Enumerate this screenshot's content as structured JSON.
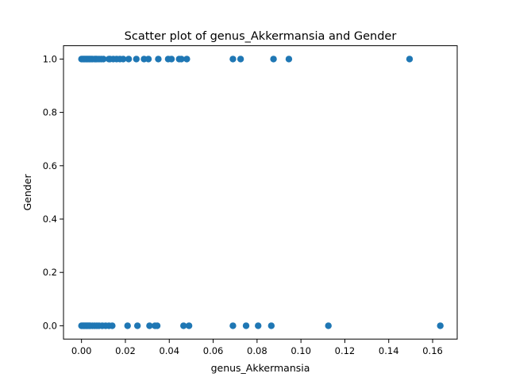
{
  "chart_data": {
    "type": "scatter",
    "title": "Scatter plot of genus_Akkermansia and Gender",
    "xlabel": "genus_Akkermansia",
    "ylabel": "Gender",
    "xlim": [
      -0.0082,
      0.1712
    ],
    "ylim": [
      -0.05,
      1.05
    ],
    "grid": false,
    "legend": "none",
    "x_ticks": [
      0.0,
      0.02,
      0.04,
      0.06,
      0.08,
      0.1,
      0.12,
      0.14,
      0.16
    ],
    "x_tick_labels": [
      "0.00",
      "0.02",
      "0.04",
      "0.06",
      "0.08",
      "0.10",
      "0.12",
      "0.14",
      "0.16"
    ],
    "y_ticks": [
      0.0,
      0.2,
      0.4,
      0.6,
      0.8,
      1.0
    ],
    "y_tick_labels": [
      "0.0",
      "0.2",
      "0.4",
      "0.6",
      "0.8",
      "1.0"
    ],
    "marker_color": "#1f77b4",
    "series": [
      {
        "x": [
          0.0,
          0.0005,
          0.001,
          0.0015,
          0.002,
          0.0025,
          0.003,
          0.0035,
          0.004,
          0.0045,
          0.005,
          0.006,
          0.0065,
          0.007,
          0.008,
          0.009,
          0.01,
          0.0125,
          0.013,
          0.0145,
          0.016,
          0.0175,
          0.019,
          0.0215,
          0.025,
          0.0285,
          0.0305,
          0.035,
          0.0395,
          0.041,
          0.0445,
          0.0455,
          0.048,
          0.069,
          0.0725,
          0.0875,
          0.0945,
          0.1495,
          0.0,
          0.0005,
          0.001,
          0.0015,
          0.002,
          0.0025,
          0.003,
          0.0035,
          0.004,
          0.005,
          0.006,
          0.007,
          0.008,
          0.0095,
          0.011,
          0.0125,
          0.014,
          0.021,
          0.0255,
          0.031,
          0.0335,
          0.0345,
          0.0465,
          0.049,
          0.069,
          0.075,
          0.0805,
          0.0865,
          0.1125,
          0.1635
        ],
        "y": [
          1,
          1,
          1,
          1,
          1,
          1,
          1,
          1,
          1,
          1,
          1,
          1,
          1,
          1,
          1,
          1,
          1,
          1,
          1,
          1,
          1,
          1,
          1,
          1,
          1,
          1,
          1,
          1,
          1,
          1,
          1,
          1,
          1,
          1,
          1,
          1,
          1,
          1,
          0,
          0,
          0,
          0,
          0,
          0,
          0,
          0,
          0,
          0,
          0,
          0,
          0,
          0,
          0,
          0,
          0,
          0,
          0,
          0,
          0,
          0,
          0,
          0,
          0,
          0,
          0,
          0,
          0,
          0
        ]
      }
    ]
  }
}
